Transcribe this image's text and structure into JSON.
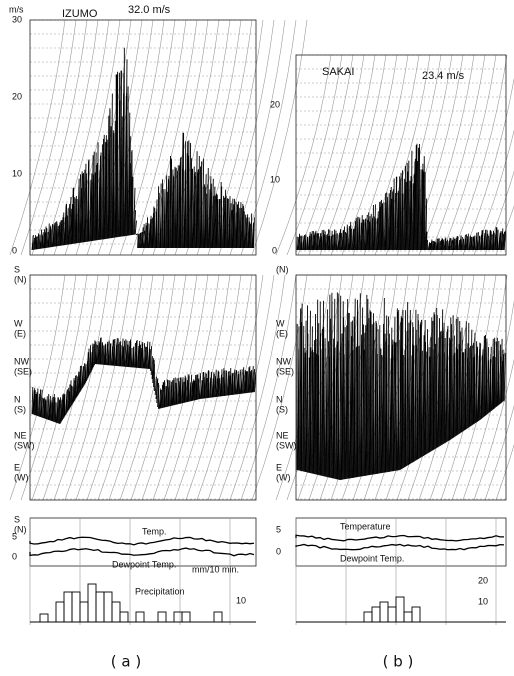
{
  "panels": [
    {
      "label": "( a )",
      "station": "IZUMO",
      "peak": "32.0 m/s",
      "speed_unit": "m/s",
      "speed_ticks": [
        "30",
        "20",
        "10",
        "0"
      ],
      "directions": [
        [
          "S",
          "(N)"
        ],
        [
          "W",
          "(E)"
        ],
        [
          "NW",
          "(SE)"
        ],
        [
          "N",
          "(S)"
        ],
        [
          "NE",
          "(SW)"
        ],
        [
          "E",
          "(W)"
        ],
        [
          "S",
          "(N)"
        ]
      ],
      "temp_label": "Temp.",
      "dewpoint_label": "Dewpoint Temp.",
      "temp_ticks": [
        "5",
        "0"
      ],
      "precip_label": "Precipitation",
      "precip_unit": "mm/10 min.",
      "precip_ticks": [
        "10"
      ]
    },
    {
      "label": "( b )",
      "station": "SAKAI",
      "peak": "23.4 m/s",
      "speed_ticks": [
        "20",
        "10",
        "0"
      ],
      "directions": [
        [
          "(N)"
        ],
        [
          "W",
          "(E)"
        ],
        [
          "NW",
          "(SE)"
        ],
        [
          "N",
          "(S)"
        ],
        [
          "NE",
          "(SW)"
        ],
        [
          "E",
          "(W)"
        ]
      ],
      "temp_label": "Temperature",
      "dewpoint_label": "Dewpoint Temp.",
      "temp_ticks": [
        "5",
        "0"
      ],
      "precip_ticks": [
        "20",
        "10"
      ]
    }
  ]
}
